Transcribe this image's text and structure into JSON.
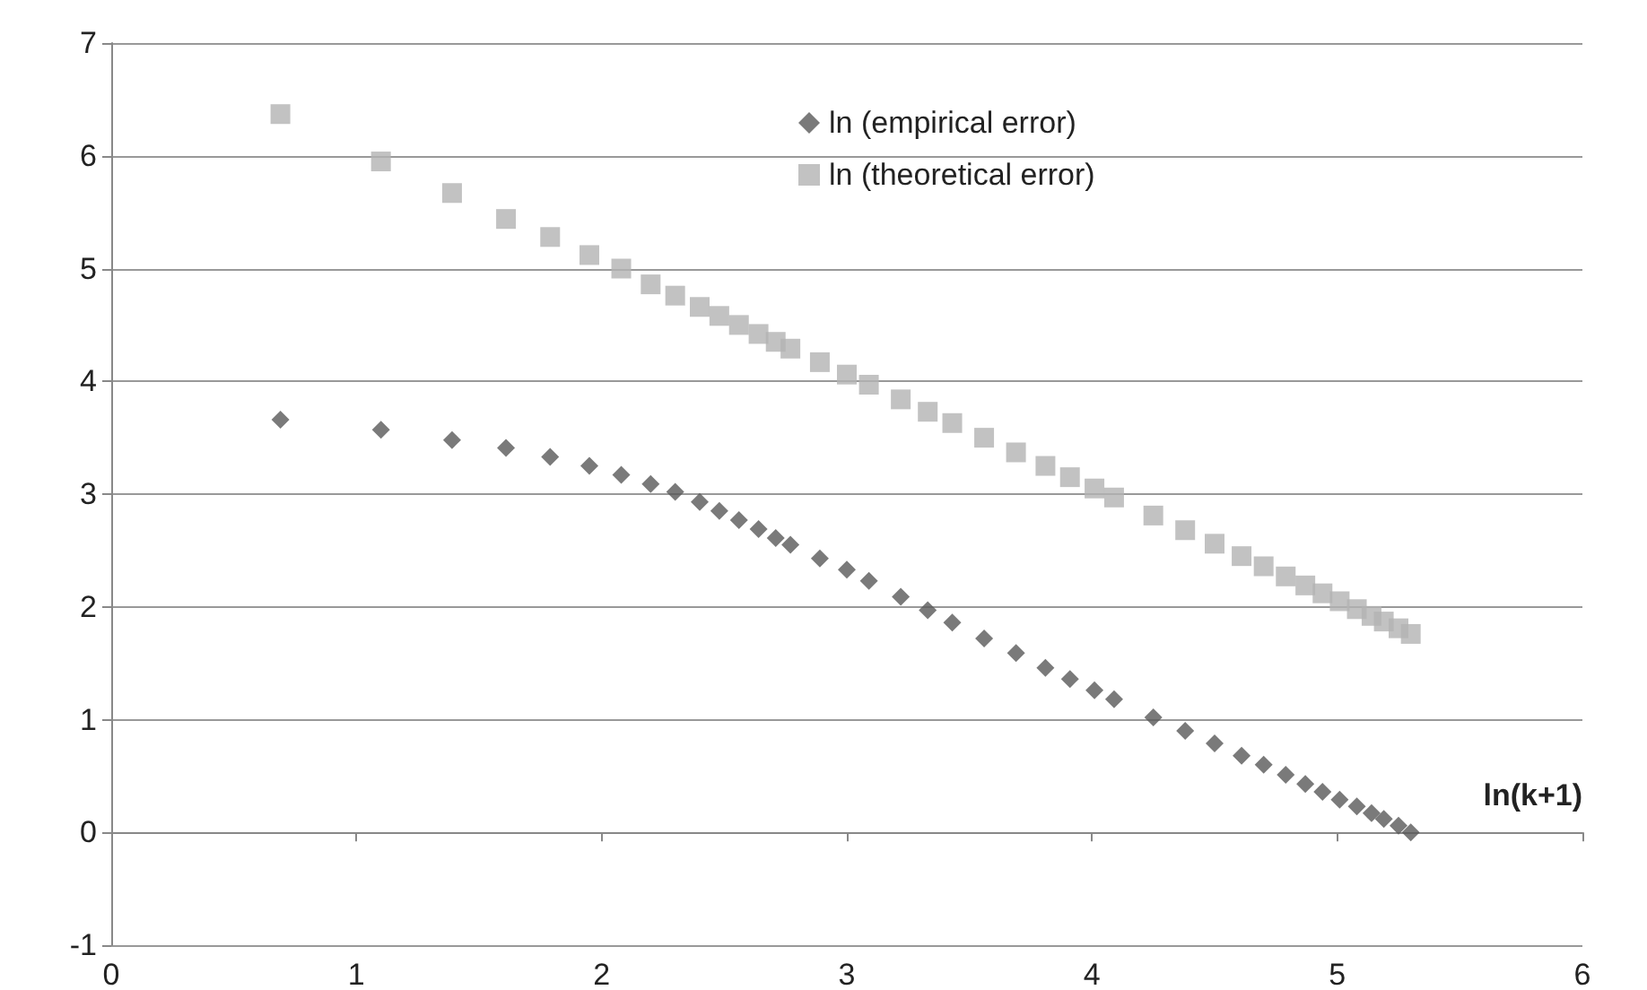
{
  "chart_data": {
    "type": "scatter",
    "xlabel": "ln(k+1)",
    "xlim": [
      0,
      6
    ],
    "xticks": [
      0,
      1,
      2,
      3,
      4,
      5,
      6
    ],
    "ylim": [
      -1,
      7
    ],
    "yticks": [
      -1,
      0,
      1,
      2,
      3,
      4,
      5,
      6,
      7
    ],
    "grid": "y",
    "legend": "top right",
    "x": [
      0.69,
      1.1,
      1.39,
      1.61,
      1.79,
      1.95,
      2.08,
      2.2,
      2.3,
      2.4,
      2.48,
      2.56,
      2.64,
      2.71,
      2.77,
      2.89,
      3.0,
      3.09,
      3.22,
      3.33,
      3.43,
      3.56,
      3.69,
      3.81,
      3.91,
      4.01,
      4.09,
      4.25,
      4.38,
      4.5,
      4.61,
      4.7,
      4.79,
      4.87,
      4.94,
      5.01,
      5.08,
      5.14,
      5.19,
      5.25,
      5.3
    ],
    "series": [
      {
        "name": "ln (empirical error)",
        "color": "#595959",
        "marker": "diamond",
        "values": [
          3.66,
          3.57,
          3.48,
          3.41,
          3.33,
          3.25,
          3.17,
          3.09,
          3.02,
          2.93,
          2.85,
          2.77,
          2.69,
          2.61,
          2.55,
          2.43,
          2.33,
          2.23,
          2.09,
          1.97,
          1.86,
          1.72,
          1.59,
          1.46,
          1.36,
          1.26,
          1.18,
          1.02,
          0.9,
          0.79,
          0.68,
          0.6,
          0.51,
          0.43,
          0.36,
          0.29,
          0.23,
          0.17,
          0.12,
          0.06,
          0.0
        ]
      },
      {
        "name": "ln (theoretical error)",
        "color": "#b3b3b3",
        "marker": "square",
        "values": [
          6.37,
          5.95,
          5.67,
          5.44,
          5.28,
          5.12,
          5.0,
          4.86,
          4.76,
          4.66,
          4.58,
          4.5,
          4.42,
          4.35,
          4.29,
          4.17,
          4.06,
          3.97,
          3.84,
          3.73,
          3.63,
          3.5,
          3.37,
          3.25,
          3.15,
          3.05,
          2.97,
          2.81,
          2.68,
          2.56,
          2.45,
          2.36,
          2.27,
          2.19,
          2.12,
          2.05,
          1.98,
          1.92,
          1.87,
          1.81,
          1.76
        ]
      }
    ]
  }
}
